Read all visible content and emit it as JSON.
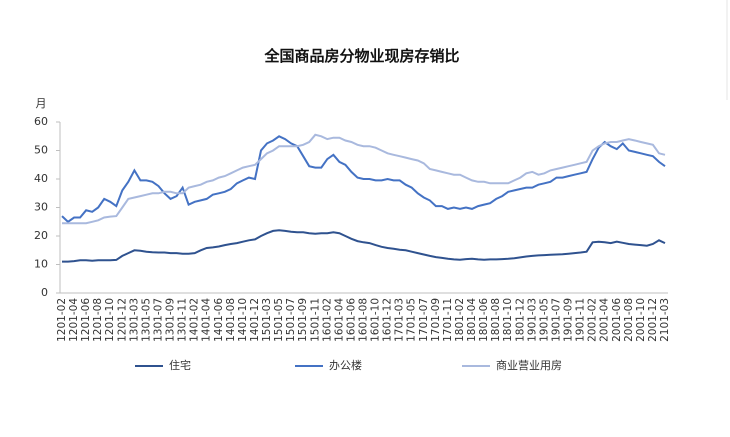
{
  "chart_data": {
    "type": "line",
    "title": "全国商品房分物业现房存销比",
    "y_label": "月",
    "categories": [
      "1201-02",
      null,
      "1201-04",
      null,
      "1201-06",
      null,
      "1201-08",
      null,
      "1201-10",
      null,
      "1201-12",
      null,
      "1301-03",
      null,
      "1301-05",
      null,
      "1301-07",
      null,
      "1301-09",
      null,
      "1301-11",
      null,
      "1401-02",
      null,
      "1401-04",
      null,
      "1401-06",
      null,
      "1401-08",
      null,
      "1401-10",
      null,
      "1401-12",
      null,
      "1501-03",
      null,
      "1501-05",
      null,
      "1501-07",
      null,
      "1501-09",
      null,
      "1501-11",
      null,
      "1601-02",
      null,
      "1601-04",
      null,
      "1601-06",
      null,
      "1601-08",
      null,
      "1601-10",
      null,
      "1601-12",
      null,
      "1701-03",
      null,
      "1701-05",
      null,
      "1701-07",
      null,
      "1701-09",
      null,
      "1701-11",
      null,
      "1801-02",
      null,
      "1801-04",
      null,
      "1801-06",
      null,
      "1801-08",
      null,
      "1801-10",
      null,
      "1801-12",
      null,
      "1901-03",
      null,
      "1901-05",
      null,
      "1901-07",
      null,
      "1901-09",
      null,
      "1901-11",
      null,
      "2001-02",
      null,
      "2001-04",
      null,
      "2001-06",
      null,
      "2001-08",
      null,
      "2001-10",
      null,
      "2001-12",
      null,
      "2101-03"
    ],
    "series": [
      {
        "name": "住宅",
        "color": "#2f528f",
        "values": [
          11,
          11,
          11.2,
          11.5,
          11.5,
          11.3,
          11.5,
          11.5,
          11.5,
          11.6,
          13,
          14,
          15,
          14.8,
          14.5,
          14.3,
          14.2,
          14.2,
          14,
          14,
          13.8,
          13.8,
          14,
          15,
          15.8,
          16,
          16.3,
          16.8,
          17.2,
          17.5,
          18,
          18.5,
          18.8,
          20,
          21,
          21.8,
          22,
          21.8,
          21.5,
          21.3,
          21.3,
          21,
          20.8,
          21,
          21,
          21.3,
          21,
          20,
          19,
          18.2,
          17.8,
          17.5,
          16.8,
          16.2,
          15.8,
          15.5,
          15.2,
          15,
          14.5,
          14,
          13.5,
          13,
          12.6,
          12.3,
          12,
          11.8,
          11.7,
          11.9,
          12,
          11.8,
          11.7,
          11.8,
          11.8,
          11.9,
          12,
          12.2,
          12.5,
          12.8,
          13,
          13.2,
          13.3,
          13.4,
          13.5,
          13.6,
          13.8,
          14,
          14.2,
          14.5,
          17.8,
          18,
          17.8,
          17.5,
          18,
          17.6,
          17.2,
          17,
          16.8,
          16.6,
          17.2,
          18.5,
          17.5
        ]
      },
      {
        "name": "办公楼",
        "color": "#4472c4",
        "values": [
          27,
          25,
          26.5,
          26.5,
          29,
          28.5,
          30,
          33,
          32,
          30.5,
          36,
          39,
          43,
          39.5,
          39.5,
          39,
          37.5,
          35,
          33,
          34,
          37,
          31,
          32,
          32.5,
          33,
          34.5,
          35,
          35.5,
          36.5,
          38.5,
          39.5,
          40.5,
          40,
          50,
          52.5,
          53.5,
          55,
          54,
          52.5,
          51.5,
          48,
          44.5,
          44,
          44,
          47,
          48.5,
          46,
          45,
          42.5,
          40.5,
          40,
          40,
          39.5,
          39.5,
          40,
          39.5,
          39.5,
          38,
          37,
          35,
          33.5,
          32.5,
          30.5,
          30.5,
          29.5,
          30,
          29.5,
          30,
          29.5,
          30.5,
          31,
          31.5,
          33,
          34,
          35.5,
          36,
          36.5,
          37,
          37,
          38,
          38.5,
          39,
          40.5,
          40.5,
          41,
          41.5,
          42,
          42.5,
          47,
          51,
          53,
          51.5,
          50.5,
          52.5,
          50,
          49.5,
          49,
          48.5,
          48,
          46,
          44.5
        ]
      },
      {
        "name": "商业营业用房",
        "color": "#a9b9de",
        "values": [
          24.5,
          24.5,
          24.5,
          24.5,
          24.5,
          25,
          25.5,
          26.5,
          26.8,
          27,
          30,
          33,
          33.5,
          34,
          34.5,
          35,
          35,
          35.5,
          35.5,
          35,
          35,
          37,
          37.5,
          38,
          39,
          39.5,
          40.5,
          41,
          42,
          43,
          44,
          44.5,
          45,
          47,
          49,
          50,
          51.5,
          51.5,
          51.5,
          51.5,
          52,
          53,
          55.5,
          55,
          54,
          54.5,
          54.5,
          53.5,
          53,
          52,
          51.5,
          51.5,
          51,
          50,
          49,
          48.5,
          48,
          47.5,
          47,
          46.5,
          45.5,
          43.5,
          43,
          42.5,
          42,
          41.5,
          41.5,
          40.5,
          39.5,
          39,
          39,
          38.5,
          38.5,
          38.5,
          38.5,
          39.5,
          40.5,
          42,
          42.5,
          41.5,
          42,
          43,
          43.5,
          44,
          44.5,
          45,
          45.5,
          46,
          50,
          51.5,
          52.5,
          53,
          53,
          53.5,
          54,
          53.5,
          53,
          52.5,
          52,
          49,
          48.5
        ]
      }
    ],
    "ylim": [
      0,
      60
    ],
    "yticks": [
      0,
      10,
      20,
      30,
      40,
      50,
      60
    ],
    "grid": false,
    "legend": "bottom"
  }
}
